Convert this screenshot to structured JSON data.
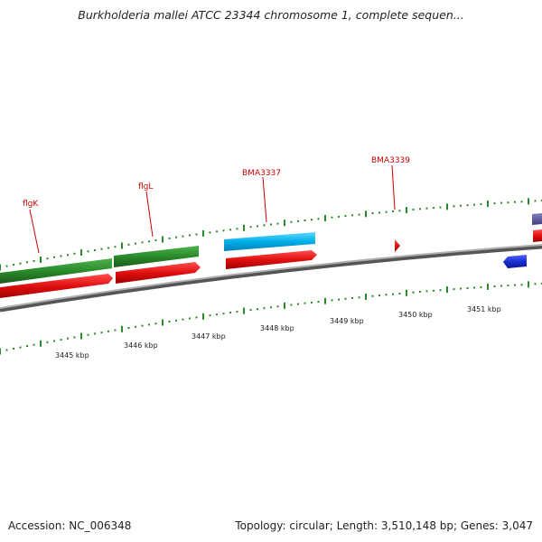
{
  "title": "Burkholderia mallei ATCC 23344 chromosome 1, complete sequen...",
  "footer": {
    "accession": "Accession: NC_006348",
    "summary": "Topology: circular; Length: 3,510,148 bp; Genes: 3,047"
  },
  "gene_labels": [
    "flgK",
    "flgL",
    "BMA3337",
    "BMA3339"
  ],
  "kbp_labels": [
    "3445 kbp",
    "3446 kbp",
    "3447 kbp",
    "3448 kbp",
    "3449 kbp",
    "3450 kbp",
    "3451 kbp"
  ],
  "colors": {
    "backbone": "#808080",
    "forward_cds": "#e01010",
    "gene_green": "#2a8a2a",
    "gene_cyan": "#00aeea",
    "gene_blue": "#1a2fd0",
    "gene_purple": "#5a5aa0",
    "gene_label": "#cc0000",
    "tick_green": "#2a8a2a"
  }
}
